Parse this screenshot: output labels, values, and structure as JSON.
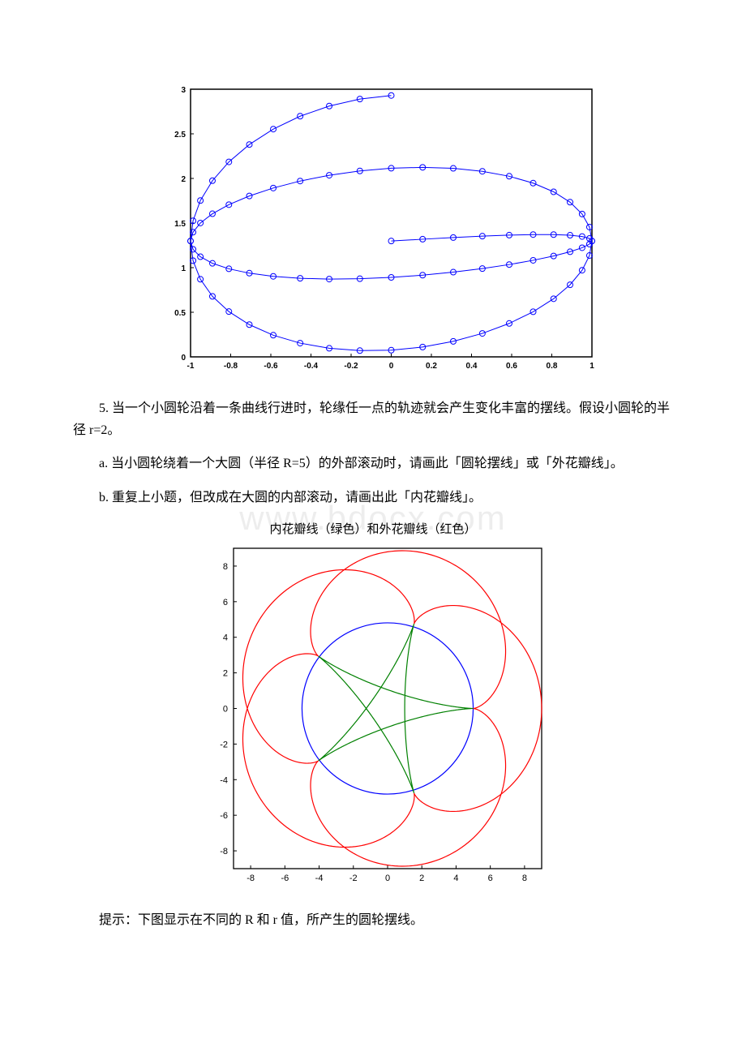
{
  "watermark": "www.bdocx.com",
  "chart1": {
    "type": "line",
    "xlim": [
      -1,
      1
    ],
    "ylim": [
      0,
      3
    ],
    "xtick_step": 0.2,
    "ytick_step": 0.5,
    "xtick_labels": [
      "-1",
      "-0.8",
      "-0.6",
      "-0.4",
      "-0.2",
      "0",
      "0.2",
      "0.4",
      "0.6",
      "0.8",
      "1"
    ],
    "ytick_labels": [
      "0",
      "0.5",
      "1",
      "1.5",
      "2",
      "2.5",
      "3"
    ],
    "label_fontsize": 10,
    "label_fontweight": "bold",
    "line_color": "#0000ff",
    "marker": "circle",
    "marker_stroke": "#0000ff",
    "marker_fill": "none",
    "marker_size": 3.5,
    "line_width": 1,
    "background_color": "#ffffff",
    "axis_color": "#000000",
    "tick_length": 4,
    "points_t": {
      "start": 0,
      "end": 12.566,
      "step": 0.157
    },
    "param_eq": "x=sin(t), y=1.5 + (t/(4*pi))*cos(t) scaled to fit"
  },
  "question5_text": "5. 当一个小圆轮沿着一条曲线行进时，轮缘任一点的轨迹就会产生变化丰富的摆线。假设小圆轮的半径 r=2。",
  "question5a_text": "a. 当小圆轮绕着一个大圆（半径 R=5）的外部滚动时，请画此「圆轮摆线」或「外花瓣线」。",
  "question5b_text": "b. 重复上小题，但改成在大圆的内部滚动，请画出此「内花瓣线」。",
  "chart2": {
    "type": "line",
    "title": "内花瓣线（绿色）和外花瓣线（红色）",
    "title_fontsize": 15,
    "xlim": [
      -9,
      9
    ],
    "ylim": [
      -9,
      9
    ],
    "xtick_step": 2,
    "ytick_step": 2,
    "xtick_labels": [
      "-8",
      "-6",
      "-4",
      "-2",
      "0",
      "2",
      "4",
      "6",
      "8"
    ],
    "ytick_labels": [
      "-8",
      "-6",
      "-4",
      "-2",
      "0",
      "2",
      "4",
      "6",
      "8"
    ],
    "label_fontsize": 11,
    "background_color": "#ffffff",
    "axis_color": "#000000",
    "grid": false,
    "aspect": "equal",
    "big_circle": {
      "R": 5,
      "color": "#0000ff",
      "line_width": 1.2
    },
    "epicycloid": {
      "R": 5,
      "r": 2,
      "color": "#ff0000",
      "line_width": 1.2
    },
    "hypocycloid": {
      "R": 5,
      "r": 2,
      "color": "#008000",
      "line_width": 1.2
    }
  },
  "hint_text": "提示：下图显示在不同的 R 和 r 值，所产生的圆轮摆线。"
}
